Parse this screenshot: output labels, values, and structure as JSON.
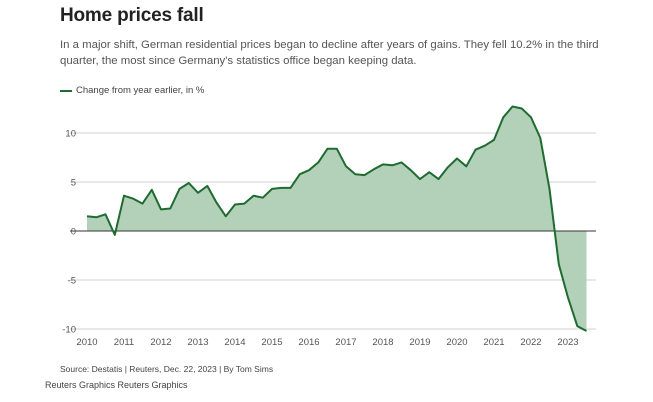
{
  "title": "Home prices fall",
  "subtitle": "In a major shift, German residential prices began to decline after years of gains. They fell 10.2% in the third quarter, the most since Germany's statistics office began keeping data.",
  "legend": {
    "label": "Change from year earlier, in %"
  },
  "source": "Source: Destatis | Reuters, Dec. 22, 2023 | By Tom Sims",
  "credit": "Reuters Graphics Reuters Graphics",
  "colors": {
    "line": "#1f6b30",
    "area": "#b3d1b8",
    "grid": "#d0d0d0",
    "zero": "#333333"
  },
  "chart_data": {
    "type": "area",
    "title": "",
    "xlabel": "",
    "ylabel": "",
    "ylim": [
      -10.5,
      12.8
    ],
    "xlim": [
      2010,
      2023.75
    ],
    "yticks": [
      -10,
      -5,
      0,
      5,
      10
    ],
    "xticks": [
      2010,
      2011,
      2012,
      2013,
      2014,
      2015,
      2016,
      2017,
      2018,
      2019,
      2020,
      2021,
      2022,
      2023
    ],
    "grid": true,
    "legend_position": "top-left",
    "series": [
      {
        "name": "Change from year earlier, in %",
        "x": [
          2010.0,
          2010.25,
          2010.5,
          2010.75,
          2011.0,
          2011.25,
          2011.5,
          2011.75,
          2012.0,
          2012.25,
          2012.5,
          2012.75,
          2013.0,
          2013.25,
          2013.5,
          2013.75,
          2014.0,
          2014.25,
          2014.5,
          2014.75,
          2015.0,
          2015.25,
          2015.5,
          2015.75,
          2016.0,
          2016.25,
          2016.5,
          2016.75,
          2017.0,
          2017.25,
          2017.5,
          2017.75,
          2018.0,
          2018.25,
          2018.5,
          2018.75,
          2019.0,
          2019.25,
          2019.5,
          2019.75,
          2020.0,
          2020.25,
          2020.5,
          2020.75,
          2021.0,
          2021.25,
          2021.5,
          2021.75,
          2022.0,
          2022.25,
          2022.5,
          2022.75,
          2023.0,
          2023.25,
          2023.5
        ],
        "values": [
          1.5,
          1.4,
          1.7,
          -0.4,
          3.6,
          3.3,
          2.8,
          4.2,
          2.2,
          2.3,
          4.3,
          4.9,
          3.9,
          4.6,
          2.9,
          1.5,
          2.7,
          2.8,
          3.6,
          3.4,
          4.3,
          4.4,
          4.4,
          5.8,
          6.2,
          7.0,
          8.4,
          8.4,
          6.6,
          5.8,
          5.7,
          6.3,
          6.8,
          6.7,
          7.0,
          6.2,
          5.3,
          6.0,
          5.3,
          6.5,
          7.4,
          6.6,
          8.3,
          8.7,
          9.3,
          11.6,
          12.7,
          12.5,
          11.6,
          9.5,
          4.3,
          -3.4,
          -6.8,
          -9.7,
          -10.2
        ]
      }
    ]
  }
}
